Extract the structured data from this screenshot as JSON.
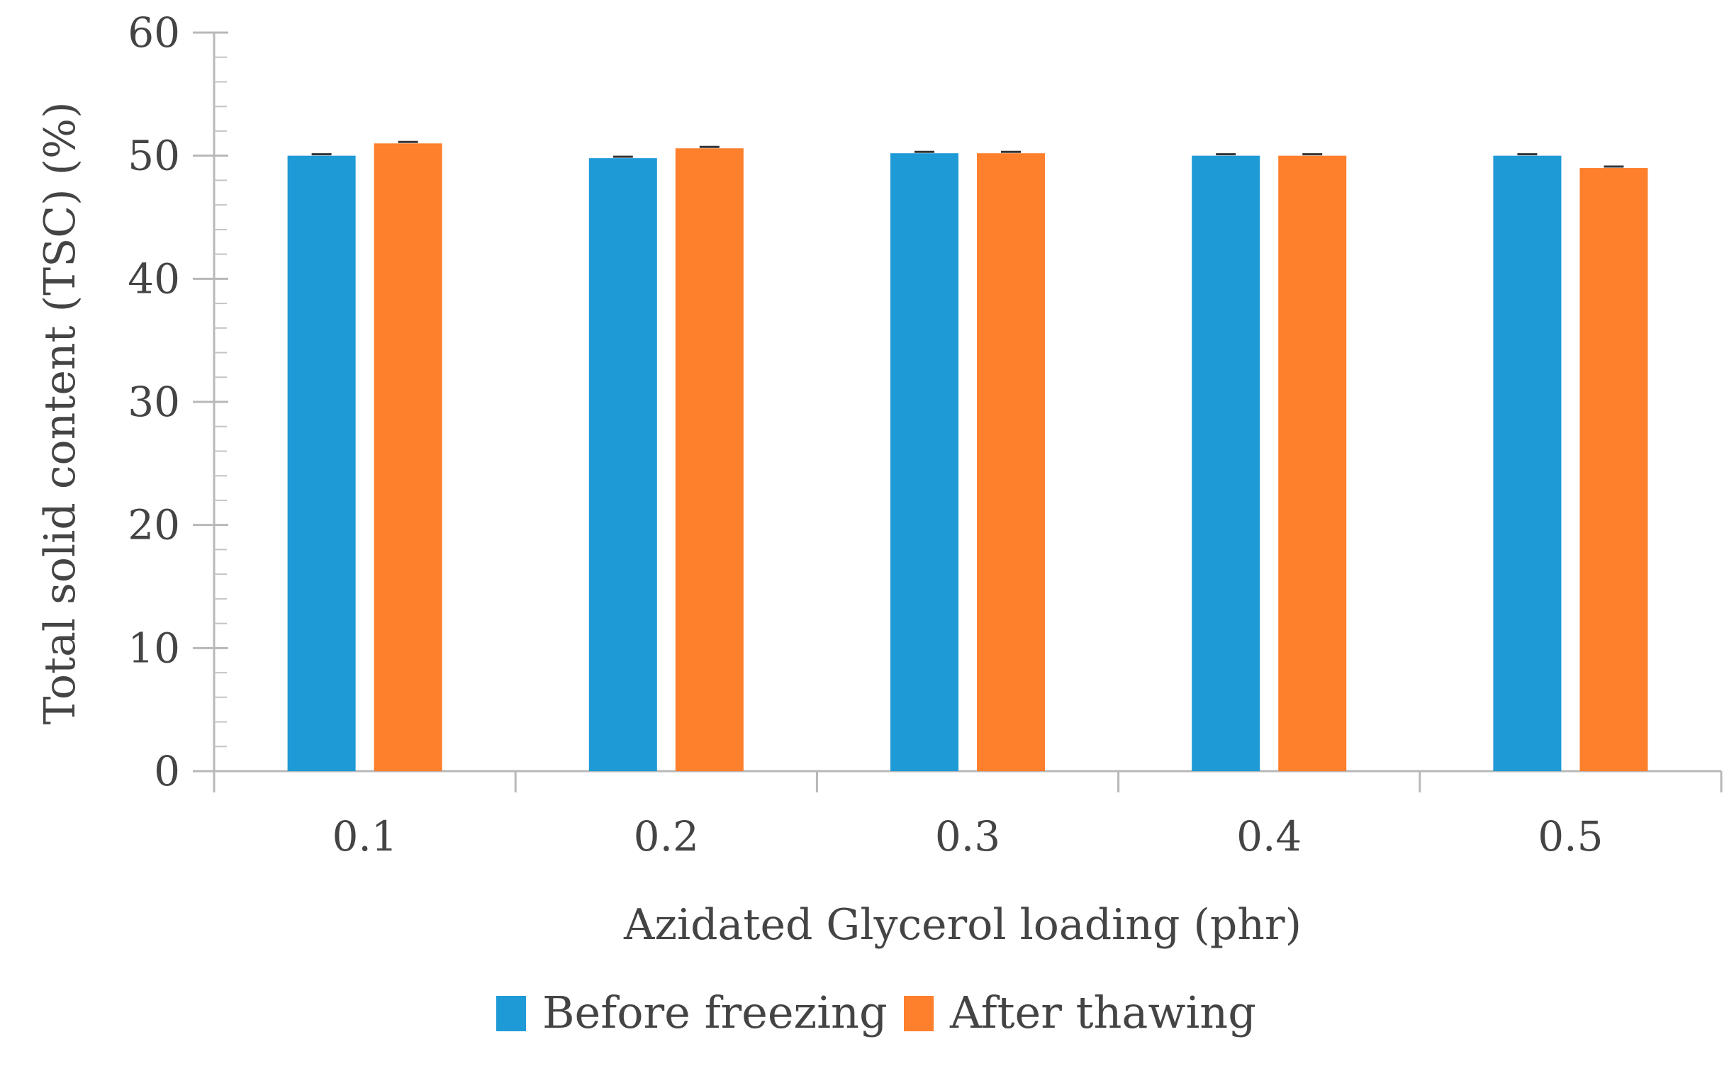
{
  "chart_data": {
    "type": "bar",
    "xlabel": "Azidated Glycerol loading (phr)",
    "ylabel": "Total solid content (TSC)  (%)",
    "categories": [
      "0.1",
      "0.2",
      "0.3",
      "0.4",
      "0.5"
    ],
    "series": [
      {
        "name": "Before freezing",
        "color": "#1e9ad6",
        "values": [
          50.0,
          49.8,
          50.2,
          50.0,
          50.0
        ]
      },
      {
        "name": "After thawing",
        "color": "#fe7f2c",
        "values": [
          51.0,
          50.6,
          50.2,
          50.0,
          49.0
        ]
      }
    ],
    "ylim": [
      0,
      60
    ],
    "yticks": [
      "0",
      "10",
      "20",
      "30",
      "40",
      "50",
      "60"
    ],
    "ytick_values": [
      0,
      10,
      20,
      30,
      40,
      50,
      60
    ],
    "minor_tick_step": 2,
    "grid": false,
    "legend_position": "bottom-center",
    "error_bars": true
  }
}
